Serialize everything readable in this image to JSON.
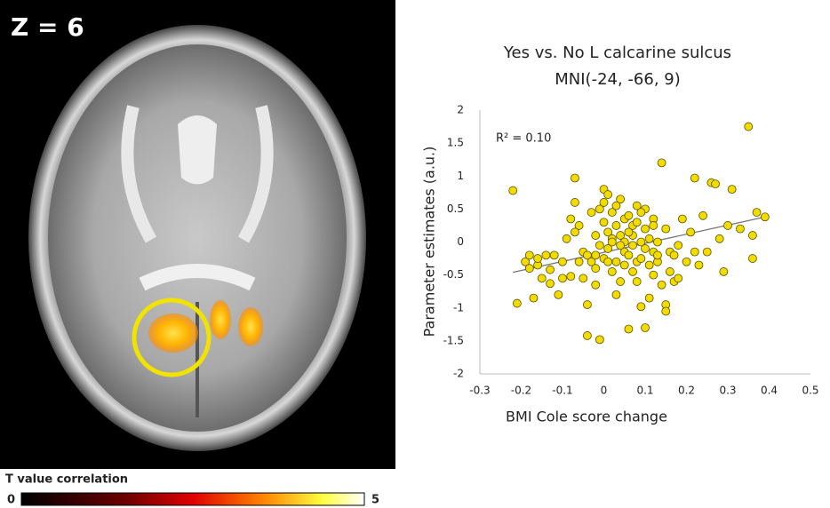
{
  "brain_panel": {
    "label": "Z = 6",
    "colorbar_title": "T value correlation",
    "colorbar_min": 0,
    "colorbar_max": 5
  },
  "chart_data": {
    "type": "scatter",
    "title": "Yes vs. No L calcarine sulcus",
    "subtitle": "MNI(-24, -66, 9)",
    "x_label": "BMI Cole score change",
    "y_label": "Parameter estimates (a.u.)",
    "annotation": "R² = 0.10",
    "xlim": [
      -0.3,
      0.5
    ],
    "xticks": [
      -0.3,
      -0.2,
      -0.1,
      0,
      0.1,
      0.2,
      0.3,
      0.4,
      0.5
    ],
    "ylim": [
      -2,
      2
    ],
    "yticks": [
      -2,
      -1.5,
      -1,
      -0.5,
      0,
      0.5,
      1,
      1.5,
      2
    ],
    "grid": false,
    "trendline": {
      "x": [
        -0.22,
        0.39
      ],
      "y": [
        -0.46,
        0.38
      ],
      "color": "#777777"
    },
    "series": [
      {
        "color": "#f2dc00",
        "x": [
          -0.22,
          -0.21,
          -0.19,
          -0.18,
          -0.18,
          -0.17,
          -0.16,
          -0.15,
          -0.14,
          -0.13,
          -0.12,
          -0.11,
          -0.1,
          -0.09,
          -0.08,
          -0.08,
          -0.07,
          -0.07,
          -0.06,
          -0.06,
          -0.05,
          -0.05,
          -0.04,
          -0.04,
          -0.04,
          -0.03,
          -0.03,
          -0.02,
          -0.02,
          -0.02,
          -0.01,
          -0.01,
          0,
          0,
          0,
          0.01,
          0.01,
          0.01,
          0.02,
          0.02,
          0.02,
          0.03,
          0.03,
          0.03,
          0.04,
          0.04,
          0.04,
          0.05,
          0.05,
          0.05,
          0.06,
          0.06,
          0.06,
          0.07,
          0.07,
          0.07,
          0.08,
          0.08,
          0.08,
          0.09,
          0.09,
          0.09,
          0.1,
          0.1,
          0.1,
          0.1,
          0.11,
          0.11,
          0.12,
          0.12,
          0.12,
          0.13,
          0.13,
          0.14,
          0.14,
          0.15,
          0.15,
          0.15,
          0.16,
          0.16,
          0.17,
          0.17,
          0.18,
          0.19,
          0.2,
          0.21,
          0.22,
          0.22,
          0.23,
          0.24,
          0.25,
          0.26,
          0.27,
          0.28,
          0.29,
          0.3,
          0.31,
          0.33,
          0.35,
          0.36,
          0.36,
          0.37,
          0.39,
          -0.16,
          -0.13,
          -0.1,
          -0.07,
          0,
          0.02,
          0.06,
          0.08,
          0.12,
          0.18,
          0.05,
          -0.01,
          0.03,
          0.11,
          0.04,
          -0.02,
          0.09,
          0.13,
          0.01,
          0.07
        ],
        "values": [
          0.78,
          -0.93,
          -0.3,
          -0.2,
          -0.4,
          -0.85,
          -0.35,
          -0.55,
          -0.2,
          -0.63,
          -0.2,
          -0.8,
          -0.3,
          0.05,
          -0.52,
          0.35,
          0.6,
          0.97,
          0.25,
          -0.3,
          -0.15,
          -0.55,
          -0.2,
          -0.95,
          -1.42,
          0.45,
          -0.3,
          0.1,
          -0.2,
          -0.65,
          -1.48,
          0.5,
          -0.25,
          0.3,
          0.8,
          -0.1,
          0.15,
          0.72,
          -0.45,
          0.05,
          0.45,
          -0.3,
          0.25,
          -0.8,
          0.1,
          0.65,
          -0.6,
          -0.15,
          0.35,
          0,
          0.4,
          -0.2,
          -1.32,
          0.1,
          -0.05,
          0.25,
          -0.3,
          0.55,
          -0.6,
          0,
          -0.25,
          -0.98,
          0.5,
          -0.1,
          0.2,
          -1.3,
          0.05,
          -0.35,
          0.35,
          -0.15,
          -0.5,
          0,
          -0.3,
          1.2,
          -0.65,
          -0.95,
          -1.05,
          0.2,
          -0.15,
          -0.45,
          -0.2,
          -0.6,
          -0.05,
          0.35,
          -0.3,
          0.15,
          -0.15,
          0.97,
          -0.35,
          0.4,
          -0.15,
          0.9,
          0.88,
          0.05,
          -0.45,
          0.25,
          0.8,
          0.2,
          1.75,
          0.1,
          -0.25,
          0.45,
          0.38,
          -0.25,
          -0.42,
          -0.55,
          0.15,
          0.6,
          0,
          0.15,
          0.3,
          0.25,
          -0.55,
          -0.35,
          -0.05,
          0.55,
          -0.85,
          -0.05,
          -0.4,
          0.45,
          -0.2,
          -0.3,
          -0.45
        ]
      }
    ]
  }
}
